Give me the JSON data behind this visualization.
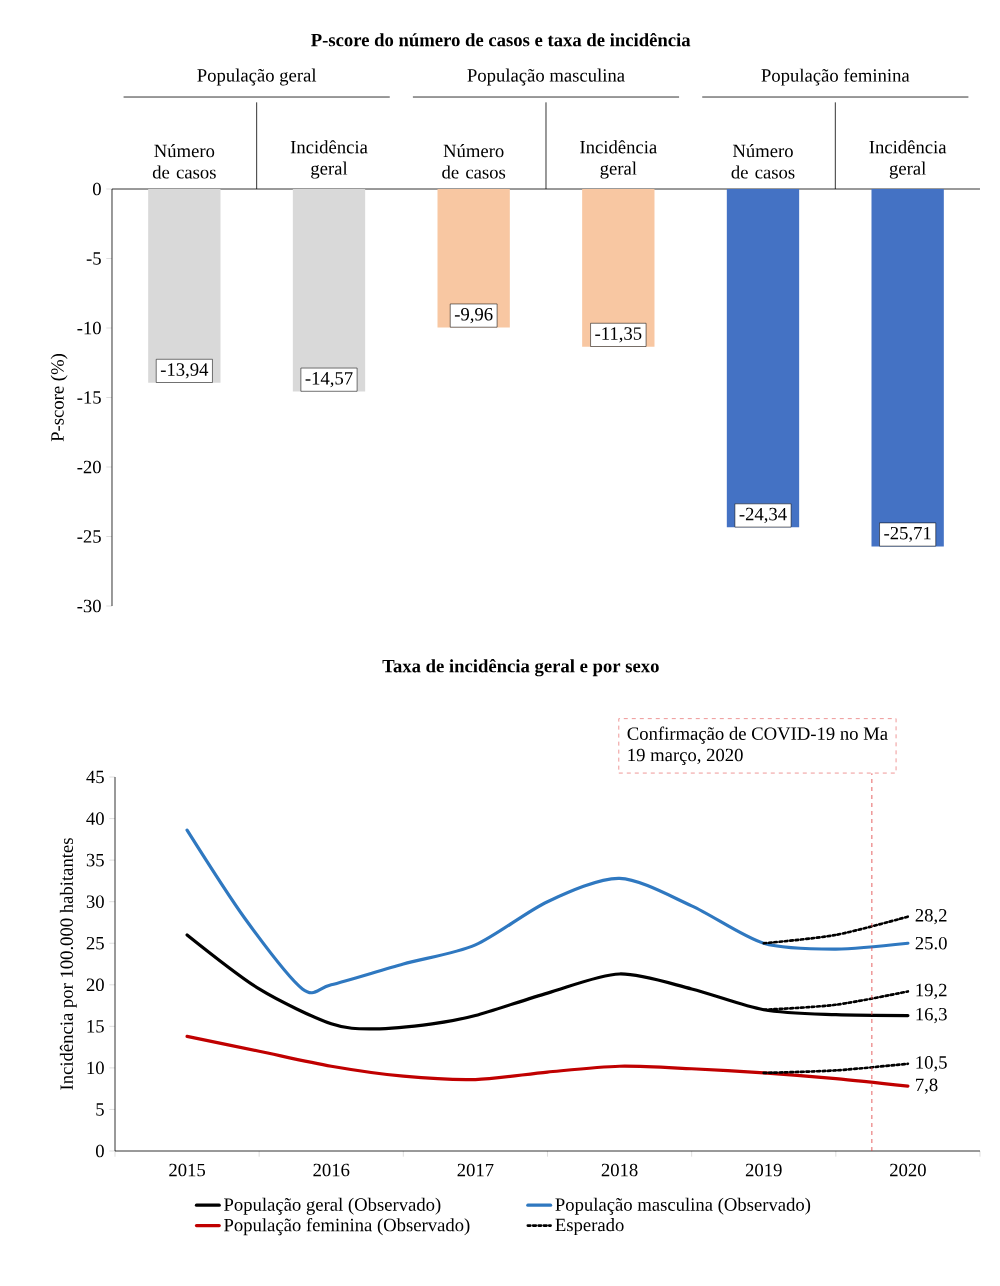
{
  "chart_data": [
    {
      "type": "bar",
      "title": "P-score do número de casos e taxa de incidência",
      "ylabel": "P-score (%)",
      "categories": [
        "Número de casos",
        "Incidência geral",
        "Número de casos",
        "Incidência geral",
        "Número de casos",
        "Incidência geral"
      ],
      "values": [
        -13.94,
        -14.57,
        -9.96,
        -11.35,
        -24.34,
        -25.71
      ],
      "value_labels": [
        "-13,94",
        "-14,57",
        "-9,96",
        "-11,35",
        "-24,34",
        "-25,71"
      ],
      "colors": [
        "#d9d9d9",
        "#d9d9d9",
        "#f8c7a2",
        "#f8c7a2",
        "#4472c4",
        "#4472c4"
      ],
      "ylim": [
        -30,
        0
      ],
      "yticks": [
        -30,
        -25,
        -20,
        -15,
        -10,
        -5,
        0
      ],
      "annotations": [
        "População geral",
        "População masculina",
        "População feminina"
      ]
    },
    {
      "type": "line",
      "title": "Taxa de incidência  geral e por sexo",
      "ylabel": "Incidência  por 100.000 habitantes",
      "xlim": [
        2014.5,
        2020.5
      ],
      "xticks": [
        {
          "value": 2014.5,
          "label": null
        },
        2015,
        {
          "value": 2015.5,
          "label": null
        },
        2016,
        {
          "value": 2016.5,
          "label": null
        },
        2017,
        {
          "value": 2017.5,
          "label": null
        },
        2018,
        {
          "value": 2018.5,
          "label": null
        },
        2019,
        {
          "value": 2019.5,
          "label": null
        },
        2020,
        {
          "value": 2020.5,
          "label": null
        }
      ],
      "ylim": [
        0,
        45
      ],
      "yticks": [
        0,
        5,
        10,
        15,
        20,
        25,
        30,
        35,
        40,
        45
      ],
      "legend": "bottom",
      "series": [
        {
          "name": "População geral (Observado)",
          "color": "#000000",
          "line_style": "solid",
          "x": [
            2015,
            2015.5,
            2016,
            2016.3,
            2016.7,
            2017,
            2017.5,
            2018,
            2018.5,
            2019,
            2019.5,
            2020
          ],
          "values": [
            26,
            19.5,
            15.3,
            14.7,
            15.3,
            16.3,
            19,
            21.3,
            19.5,
            17,
            16.4,
            16.3
          ],
          "value_labels": [
            null,
            null,
            null,
            null,
            null,
            null,
            null,
            null,
            null,
            null,
            null,
            "16,3"
          ]
        },
        {
          "name": "População masculina (Observado)",
          "color": "#2f78c0",
          "line_style": "solid",
          "x": [
            2015,
            2015.4,
            2015.8,
            2016,
            2016.5,
            2017,
            2017.5,
            2018,
            2018.5,
            2019,
            2019.5,
            2020
          ],
          "values": [
            38.6,
            28,
            19.5,
            20,
            22.5,
            24.8,
            30,
            32.8,
            29.5,
            25,
            24.3,
            25
          ],
          "value_labels": [
            null,
            null,
            null,
            null,
            null,
            null,
            null,
            null,
            null,
            null,
            null,
            "25.0"
          ]
        },
        {
          "name": "População feminina (Observado)",
          "color": "#c00000",
          "line_style": "solid",
          "x": [
            2015,
            2015.5,
            2016,
            2016.5,
            2017,
            2017.5,
            2018,
            2018.5,
            2019,
            2019.5,
            2020
          ],
          "values": [
            13.8,
            12,
            10.2,
            9,
            8.6,
            9.5,
            10.2,
            9.9,
            9.4,
            8.7,
            7.8
          ],
          "value_labels": [
            null,
            null,
            null,
            null,
            null,
            null,
            null,
            null,
            null,
            null,
            "7,8"
          ]
        },
        {
          "name": "Esperado",
          "color": "#000000",
          "line_style": "dotted",
          "x": [
            2019,
            2019.5,
            2020
          ],
          "values": [
            17,
            17.6,
            19.2
          ],
          "value_labels": [
            null,
            null,
            "19,2"
          ]
        },
        {
          "color": "#000000",
          "line_style": "dotted",
          "x": [
            2019,
            2019.5,
            2020
          ],
          "values": [
            25,
            26,
            28.2
          ],
          "value_labels": [
            null,
            null,
            "28,2"
          ]
        },
        {
          "color": "#000000",
          "line_style": "dotted",
          "x": [
            2019,
            2019.5,
            2020
          ],
          "values": [
            9.4,
            9.7,
            10.5
          ],
          "value_labels": [
            null,
            null,
            "10,5"
          ]
        }
      ],
      "ref_lines": [
        {
          "axis": "x",
          "value": 2019.75,
          "label": "Confirmação de COVID-19 no Ma",
          "color": "#e03c3c",
          "line_style": "dashed"
        }
      ],
      "annotations": [
        "19 março, 2020"
      ]
    }
  ]
}
